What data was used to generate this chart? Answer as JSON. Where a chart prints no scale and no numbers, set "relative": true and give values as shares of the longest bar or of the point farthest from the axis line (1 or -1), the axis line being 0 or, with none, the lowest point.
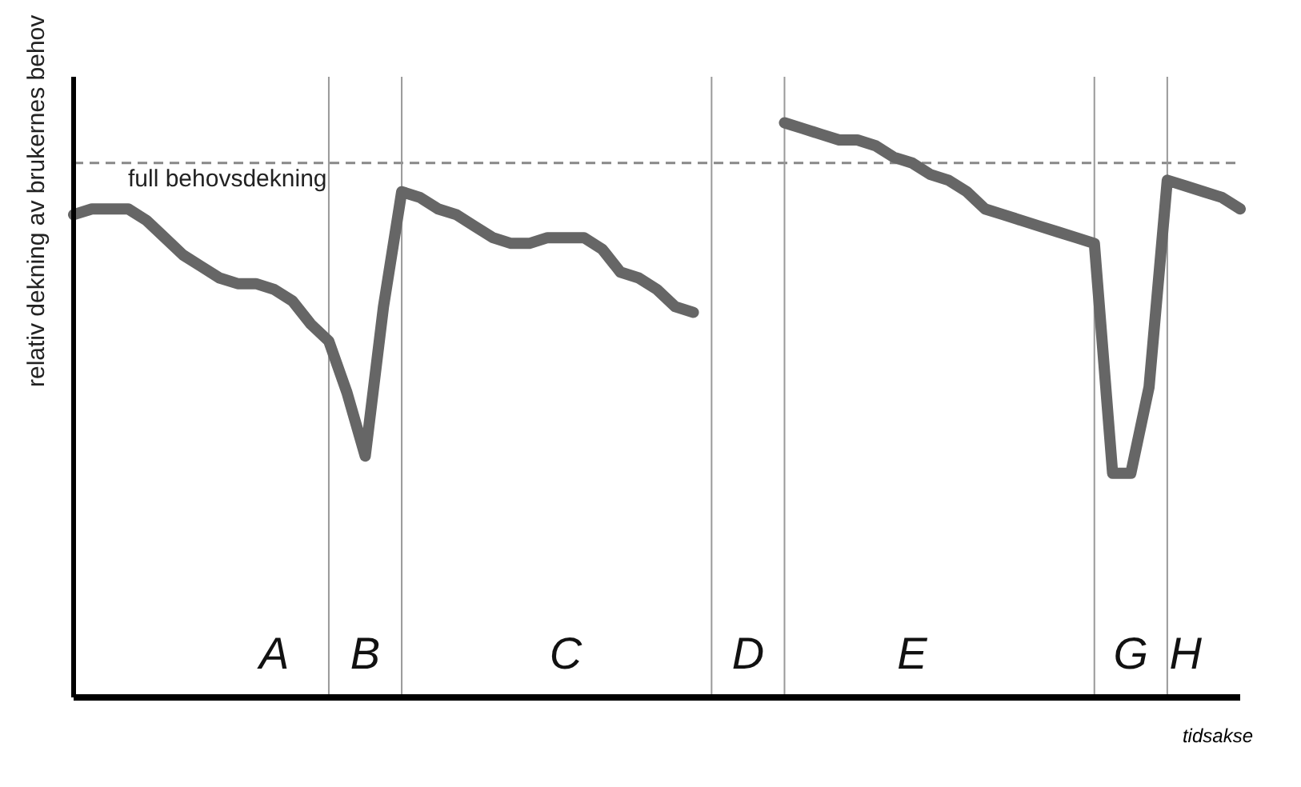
{
  "chart_data": {
    "type": "line",
    "relative": true,
    "ylabel": "relativ dekning av brukernes behov",
    "xlabel": "tidsakse",
    "tick_labels": "x",
    "categories": [
      null,
      null,
      null,
      null,
      null,
      null,
      null,
      null,
      null,
      null,
      null,
      "A",
      null,
      null,
      null,
      null,
      "B",
      null,
      null,
      null,
      null,
      null,
      null,
      null,
      null,
      null,
      null,
      "C",
      null,
      null,
      null,
      null,
      null,
      null,
      null,
      null,
      null,
      "D",
      null,
      null,
      null,
      null,
      null,
      null,
      null,
      null,
      "E",
      null,
      null,
      null,
      null,
      null,
      null,
      null,
      null,
      null,
      null,
      null,
      "G",
      null,
      null,
      "H",
      null,
      null,
      null
    ],
    "series": [
      {
        "color": "#666666",
        "values": [
          0.84,
          0.85,
          0.85,
          0.85,
          0.83,
          0.8,
          0.77,
          0.75,
          0.73,
          0.72,
          0.72,
          0.71,
          0.69,
          0.65,
          0.62,
          0.53,
          0.42,
          0.68,
          0.88,
          0.87,
          0.85,
          0.84,
          0.82,
          0.8,
          0.79,
          0.79,
          0.8,
          0.8,
          0.8,
          0.78,
          0.74,
          0.73,
          0.71,
          0.68,
          0.67,
          null,
          null,
          null,
          null,
          1,
          0.99,
          0.98,
          0.97,
          0.97,
          0.96,
          0.94,
          0.93,
          0.91,
          0.9,
          0.88,
          0.85,
          0.84,
          0.83,
          0.82,
          0.81,
          0.8,
          0.79,
          0.39,
          0.39,
          0.54,
          0.9,
          0.89,
          0.88,
          0.87,
          0.85
        ]
      }
    ],
    "ref_lines": [
      {
        "axis": "y",
        "value": 0.93,
        "label": "full behovsdekning",
        "color": "#888888",
        "line_style": "dashed"
      }
    ]
  }
}
